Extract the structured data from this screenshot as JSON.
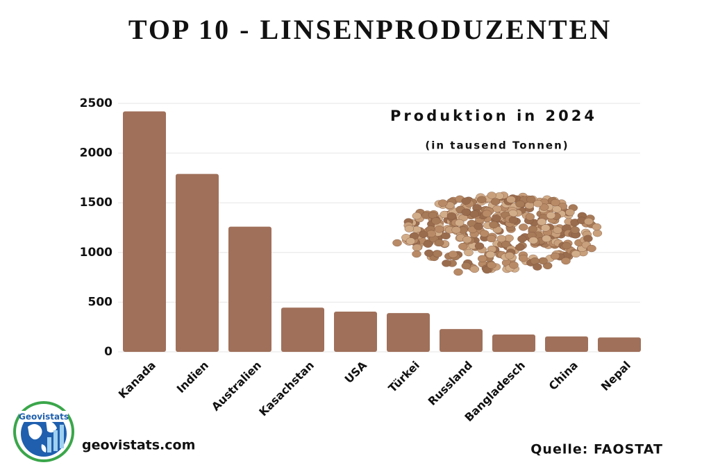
{
  "chart_data": {
    "type": "bar",
    "title": "TOP 10 - LINSENPRODUZENTEN",
    "subtitle": "Produktion in 2024",
    "unit_note": "(in tausend Tonnen)",
    "categories": [
      "Kanada",
      "Indien",
      "Australien",
      "Kasachstan",
      "USA",
      "Türkei",
      "Russland",
      "Bangladesch",
      "China",
      "Nepal"
    ],
    "values": [
      2420,
      1790,
      1260,
      445,
      405,
      390,
      230,
      175,
      155,
      145
    ],
    "color": "#a0705a",
    "ylim": [
      0,
      2500
    ],
    "yticks": [
      0,
      500,
      1000,
      1500,
      2000,
      2500
    ],
    "grid": true
  },
  "footer": {
    "website": "geovistats.com",
    "source": "Quelle: FAOSTAT",
    "logo": "Geovistats"
  }
}
